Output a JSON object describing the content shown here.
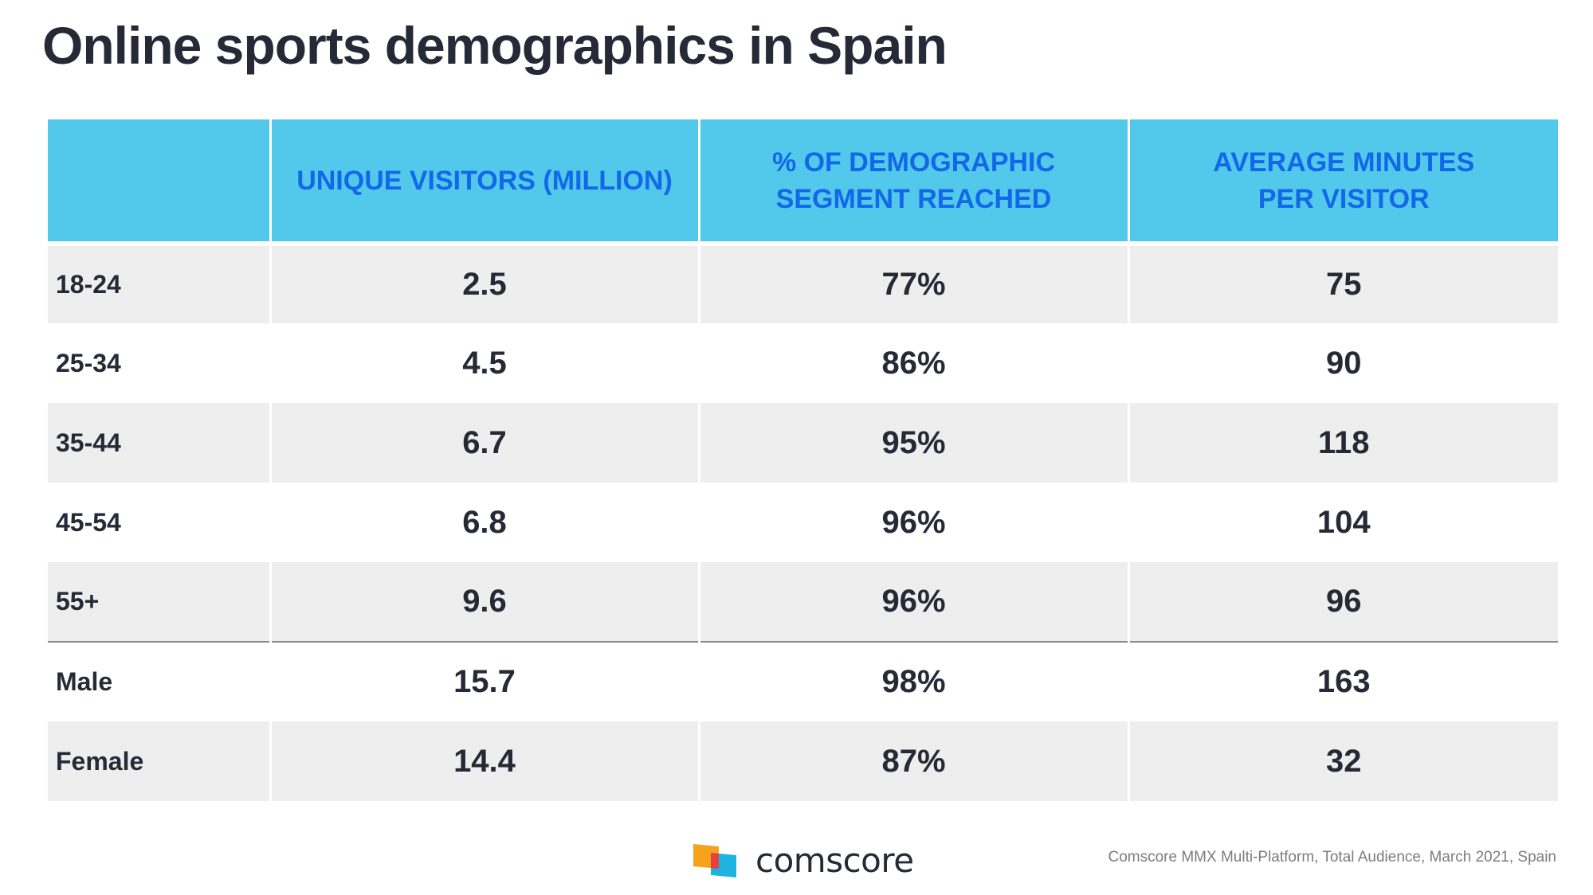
{
  "title": "Online sports demographics in Spain",
  "chart_data": {
    "type": "table",
    "title": "Online sports demographics in Spain",
    "columns": [
      "",
      "UNIQUE VISITORS (MILLION)",
      "% OF DEMOGRAPHIC SEGMENT REACHED",
      "AVERAGE MINUTES PER VISITOR"
    ],
    "header_lines": [
      [
        ""
      ],
      [
        "UNIQUE VISITORS (MILLION)"
      ],
      [
        "% OF DEMOGRAPHIC",
        "SEGMENT REACHED"
      ],
      [
        "AVERAGE MINUTES",
        "PER VISITOR"
      ]
    ],
    "rows": [
      [
        "18-24",
        "2.5",
        "77%",
        "75"
      ],
      [
        "25-34",
        "4.5",
        "86%",
        "90"
      ],
      [
        "35-44",
        "6.7",
        "95%",
        "118"
      ],
      [
        "45-54",
        "6.8",
        "96%",
        "104"
      ],
      [
        "55+",
        "9.6",
        "96%",
        "96"
      ],
      [
        "Male",
        "15.7",
        "98%",
        "163"
      ],
      [
        "Female",
        "14.4",
        "87%",
        "32"
      ]
    ]
  },
  "colors": {
    "header_background": "#52c8ea",
    "header_text": "#1368ea",
    "shaded_row": "#eeeeee",
    "body_text": "#262a36"
  },
  "logo": {
    "text": "comscore",
    "icon": "comscore-logo-icon"
  },
  "source": "Comscore MMX Multi-Platform, Total Audience, March 2021, Spain"
}
